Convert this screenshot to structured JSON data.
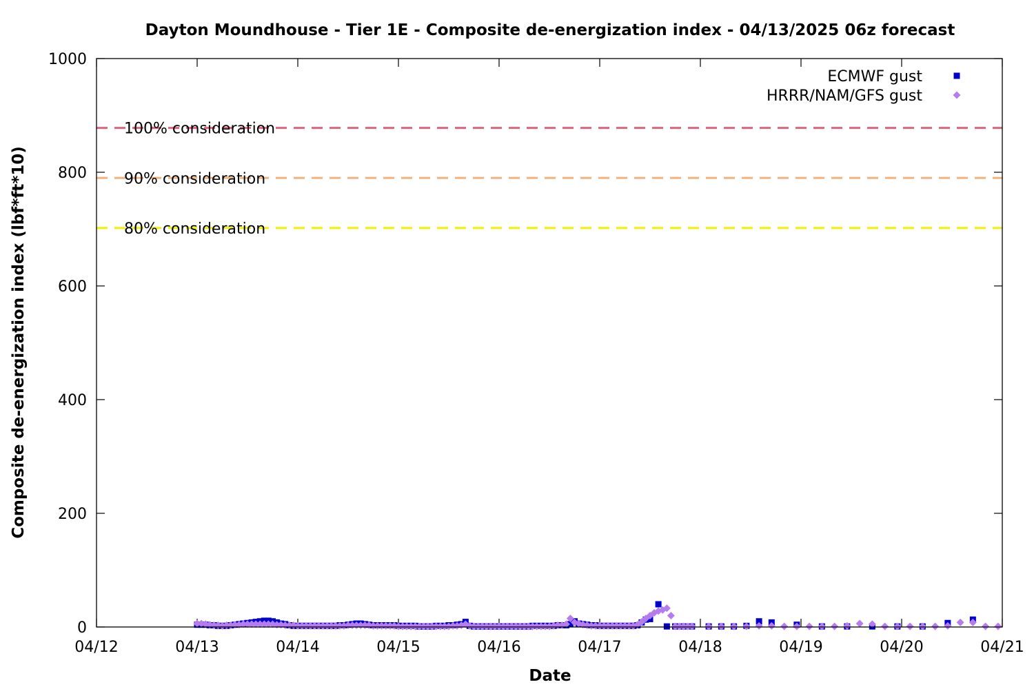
{
  "chart_data": {
    "type": "scatter",
    "title": "Dayton Moundhouse - Tier 1E - Composite de-energization index - 04/13/2025 06z forecast",
    "xlabel": "Date",
    "ylabel": "Composite de-energization index (lbf*ft*10)",
    "x_unit": "days since 04/12 00z",
    "xlim": [
      0,
      9
    ],
    "ylim": [
      0,
      1000
    ],
    "x_ticks": [
      "04/12",
      "04/13",
      "04/14",
      "04/15",
      "04/16",
      "04/17",
      "04/18",
      "04/19",
      "04/20",
      "04/21"
    ],
    "y_ticks": [
      0,
      200,
      400,
      600,
      800,
      1000
    ],
    "grid": false,
    "legend_position": "top-right",
    "reference_lines": [
      {
        "label": "100% consideration",
        "value": 878,
        "color": "#e0637e"
      },
      {
        "label": "90% consideration",
        "value": 790,
        "color": "#f5b37c"
      },
      {
        "label": "80% consideration",
        "value": 702,
        "color": "#f0f000"
      }
    ],
    "series": [
      {
        "name": "ECMWF gust",
        "color": "#0000cc",
        "marker": "square",
        "points": [
          [
            1.0,
            4
          ],
          [
            1.042,
            4
          ],
          [
            1.083,
            4
          ],
          [
            1.125,
            3
          ],
          [
            1.167,
            3
          ],
          [
            1.208,
            2
          ],
          [
            1.25,
            2
          ],
          [
            1.292,
            2
          ],
          [
            1.333,
            3
          ],
          [
            1.375,
            4
          ],
          [
            1.417,
            5
          ],
          [
            1.458,
            6
          ],
          [
            1.5,
            7
          ],
          [
            1.542,
            8
          ],
          [
            1.583,
            9
          ],
          [
            1.625,
            10
          ],
          [
            1.667,
            11
          ],
          [
            1.708,
            11
          ],
          [
            1.75,
            10
          ],
          [
            1.792,
            8
          ],
          [
            1.833,
            6
          ],
          [
            1.875,
            5
          ],
          [
            1.917,
            3
          ],
          [
            1.958,
            2
          ],
          [
            2.0,
            2
          ],
          [
            2.042,
            2
          ],
          [
            2.083,
            2
          ],
          [
            2.125,
            2
          ],
          [
            2.167,
            2
          ],
          [
            2.208,
            2
          ],
          [
            2.25,
            2
          ],
          [
            2.292,
            2
          ],
          [
            2.333,
            2
          ],
          [
            2.375,
            2
          ],
          [
            2.417,
            3
          ],
          [
            2.458,
            3
          ],
          [
            2.5,
            4
          ],
          [
            2.542,
            5
          ],
          [
            2.583,
            6
          ],
          [
            2.625,
            6
          ],
          [
            2.667,
            5
          ],
          [
            2.708,
            4
          ],
          [
            2.75,
            3
          ],
          [
            2.792,
            3
          ],
          [
            2.833,
            3
          ],
          [
            2.875,
            3
          ],
          [
            2.917,
            3
          ],
          [
            2.958,
            3
          ],
          [
            3.0,
            2
          ],
          [
            3.042,
            2
          ],
          [
            3.083,
            2
          ],
          [
            3.125,
            2
          ],
          [
            3.167,
            2
          ],
          [
            3.208,
            1
          ],
          [
            3.25,
            1
          ],
          [
            3.292,
            1
          ],
          [
            3.333,
            1
          ],
          [
            3.375,
            2
          ],
          [
            3.417,
            2
          ],
          [
            3.458,
            2
          ],
          [
            3.5,
            3
          ],
          [
            3.542,
            3
          ],
          [
            3.583,
            4
          ],
          [
            3.625,
            5
          ],
          [
            3.667,
            9
          ],
          [
            3.708,
            2
          ],
          [
            3.75,
            1
          ],
          [
            3.792,
            1
          ],
          [
            3.833,
            1
          ],
          [
            3.875,
            1
          ],
          [
            3.917,
            1
          ],
          [
            3.958,
            1
          ],
          [
            4.0,
            1
          ],
          [
            4.042,
            1
          ],
          [
            4.083,
            1
          ],
          [
            4.125,
            1
          ],
          [
            4.167,
            1
          ],
          [
            4.208,
            1
          ],
          [
            4.25,
            1
          ],
          [
            4.292,
            1
          ],
          [
            4.333,
            2
          ],
          [
            4.375,
            2
          ],
          [
            4.417,
            2
          ],
          [
            4.458,
            2
          ],
          [
            4.5,
            2
          ],
          [
            4.542,
            2
          ],
          [
            4.583,
            3
          ],
          [
            4.625,
            3
          ],
          [
            4.667,
            3
          ],
          [
            4.708,
            5
          ],
          [
            4.75,
            10
          ],
          [
            4.792,
            6
          ],
          [
            4.833,
            5
          ],
          [
            4.875,
            4
          ],
          [
            4.917,
            3
          ],
          [
            4.958,
            3
          ],
          [
            5.0,
            2
          ],
          [
            5.042,
            2
          ],
          [
            5.083,
            2
          ],
          [
            5.125,
            2
          ],
          [
            5.167,
            2
          ],
          [
            5.208,
            2
          ],
          [
            5.25,
            2
          ],
          [
            5.292,
            2
          ],
          [
            5.333,
            2
          ],
          [
            5.375,
            3
          ],
          [
            5.417,
            8
          ],
          [
            5.458,
            13
          ],
          [
            5.5,
            14
          ],
          [
            5.583,
            40
          ],
          [
            5.667,
            1
          ],
          [
            5.75,
            1
          ],
          [
            5.833,
            1
          ],
          [
            5.917,
            1
          ],
          [
            6.083,
            1
          ],
          [
            6.208,
            1
          ],
          [
            6.333,
            1
          ],
          [
            6.458,
            2
          ],
          [
            6.583,
            10
          ],
          [
            6.708,
            8
          ],
          [
            6.958,
            4
          ],
          [
            7.208,
            1
          ],
          [
            7.458,
            1
          ],
          [
            7.708,
            1
          ],
          [
            7.958,
            1
          ],
          [
            8.208,
            1
          ],
          [
            8.458,
            7
          ],
          [
            8.708,
            13
          ]
        ]
      },
      {
        "name": "HRRR/NAM/GFS gust",
        "color": "#b57cf0",
        "marker": "diamond",
        "points": [
          [
            1.0,
            6
          ],
          [
            1.042,
            6
          ],
          [
            1.083,
            5
          ],
          [
            1.125,
            4
          ],
          [
            1.167,
            3
          ],
          [
            1.208,
            3
          ],
          [
            1.25,
            2
          ],
          [
            1.292,
            3
          ],
          [
            1.333,
            3
          ],
          [
            1.375,
            4
          ],
          [
            1.417,
            4
          ],
          [
            1.458,
            5
          ],
          [
            1.5,
            5
          ],
          [
            1.542,
            5
          ],
          [
            1.583,
            5
          ],
          [
            1.625,
            5
          ],
          [
            1.667,
            5
          ],
          [
            1.708,
            5
          ],
          [
            1.75,
            5
          ],
          [
            1.792,
            4
          ],
          [
            1.833,
            4
          ],
          [
            1.875,
            3
          ],
          [
            1.917,
            3
          ],
          [
            1.958,
            3
          ],
          [
            2.0,
            2
          ],
          [
            2.042,
            2
          ],
          [
            2.083,
            2
          ],
          [
            2.125,
            2
          ],
          [
            2.167,
            2
          ],
          [
            2.208,
            2
          ],
          [
            2.25,
            2
          ],
          [
            2.292,
            2
          ],
          [
            2.333,
            2
          ],
          [
            2.375,
            2
          ],
          [
            2.417,
            2
          ],
          [
            2.458,
            2
          ],
          [
            2.5,
            3
          ],
          [
            2.542,
            3
          ],
          [
            2.583,
            3
          ],
          [
            2.625,
            3
          ],
          [
            2.667,
            3
          ],
          [
            2.708,
            3
          ],
          [
            2.75,
            2
          ],
          [
            2.792,
            2
          ],
          [
            2.833,
            2
          ],
          [
            2.875,
            2
          ],
          [
            2.917,
            2
          ],
          [
            2.958,
            2
          ],
          [
            3.0,
            1
          ],
          [
            3.042,
            1
          ],
          [
            3.083,
            1
          ],
          [
            3.125,
            1
          ],
          [
            3.167,
            1
          ],
          [
            3.208,
            1
          ],
          [
            3.25,
            1
          ],
          [
            3.292,
            1
          ],
          [
            3.333,
            1
          ],
          [
            3.375,
            1
          ],
          [
            3.417,
            1
          ],
          [
            3.458,
            1
          ],
          [
            3.5,
            1
          ],
          [
            3.542,
            2
          ],
          [
            3.583,
            2
          ],
          [
            3.625,
            3
          ],
          [
            3.667,
            5
          ],
          [
            3.708,
            2
          ],
          [
            3.75,
            1
          ],
          [
            3.792,
            1
          ],
          [
            3.833,
            1
          ],
          [
            3.875,
            1
          ],
          [
            3.917,
            1
          ],
          [
            3.958,
            1
          ],
          [
            4.0,
            1
          ],
          [
            4.042,
            1
          ],
          [
            4.083,
            1
          ],
          [
            4.125,
            1
          ],
          [
            4.167,
            1
          ],
          [
            4.208,
            1
          ],
          [
            4.25,
            1
          ],
          [
            4.292,
            1
          ],
          [
            4.333,
            1
          ],
          [
            4.375,
            1
          ],
          [
            4.417,
            1
          ],
          [
            4.458,
            1
          ],
          [
            4.5,
            1
          ],
          [
            4.542,
            2
          ],
          [
            4.583,
            3
          ],
          [
            4.625,
            3
          ],
          [
            4.667,
            5
          ],
          [
            4.708,
            15
          ],
          [
            4.75,
            8
          ],
          [
            4.792,
            6
          ],
          [
            4.833,
            4
          ],
          [
            4.875,
            3
          ],
          [
            4.917,
            2
          ],
          [
            4.958,
            2
          ],
          [
            5.0,
            2
          ],
          [
            5.042,
            2
          ],
          [
            5.083,
            2
          ],
          [
            5.125,
            2
          ],
          [
            5.167,
            2
          ],
          [
            5.208,
            2
          ],
          [
            5.25,
            2
          ],
          [
            5.292,
            2
          ],
          [
            5.333,
            2
          ],
          [
            5.375,
            4
          ],
          [
            5.417,
            9
          ],
          [
            5.458,
            15
          ],
          [
            5.5,
            20
          ],
          [
            5.542,
            25
          ],
          [
            5.583,
            28
          ],
          [
            5.625,
            30
          ],
          [
            5.667,
            33
          ],
          [
            5.708,
            20
          ],
          [
            5.75,
            1
          ],
          [
            5.792,
            1
          ],
          [
            5.833,
            1
          ],
          [
            5.875,
            1
          ],
          [
            5.917,
            1
          ],
          [
            6.083,
            1
          ],
          [
            6.208,
            1
          ],
          [
            6.333,
            1
          ],
          [
            6.458,
            1
          ],
          [
            6.583,
            2
          ],
          [
            6.708,
            2
          ],
          [
            6.833,
            1
          ],
          [
            6.958,
            1
          ],
          [
            7.083,
            1
          ],
          [
            7.208,
            1
          ],
          [
            7.333,
            1
          ],
          [
            7.458,
            2
          ],
          [
            7.583,
            6
          ],
          [
            7.708,
            5
          ],
          [
            7.833,
            1
          ],
          [
            7.958,
            1
          ],
          [
            8.083,
            1
          ],
          [
            8.208,
            1
          ],
          [
            8.333,
            1
          ],
          [
            8.458,
            2
          ],
          [
            8.583,
            8
          ],
          [
            8.708,
            8
          ],
          [
            8.833,
            1
          ],
          [
            8.958,
            1
          ]
        ]
      }
    ]
  }
}
